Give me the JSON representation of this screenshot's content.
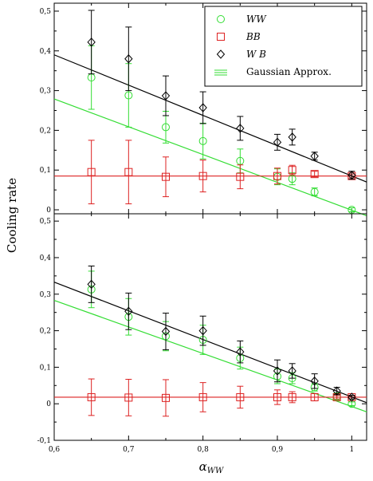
{
  "chart_data": [
    {
      "type": "scatter",
      "panel": "top",
      "xlabel": "αWW",
      "ylabel": "Cooling rate",
      "xlim": [
        0.6,
        1.02
      ],
      "ylim": [
        -0.01,
        0.52
      ],
      "x_ticks": [
        "0,6",
        "0,7",
        "0,8",
        "0,9",
        "1"
      ],
      "y_ticks": [
        "0",
        "0,1",
        "0,2",
        "0,3",
        "0,4",
        "0,5"
      ],
      "y_tick_values": [
        0,
        0.1,
        0.2,
        0.3,
        0.4,
        0.5
      ],
      "x_tick_values": [
        0.6,
        0.7,
        0.8,
        0.9,
        1.0
      ],
      "grid": false,
      "legend_position": "top-right",
      "series": [
        {
          "name": "WW",
          "color": "#33dd33",
          "marker": "circle",
          "x": [
            0.65,
            0.7,
            0.75,
            0.8,
            0.85,
            0.9,
            0.92,
            0.95,
            1.0
          ],
          "y": [
            0.333,
            0.288,
            0.208,
            0.173,
            0.123,
            0.083,
            0.078,
            0.045,
            0.0
          ],
          "err": [
            0.08,
            0.08,
            0.04,
            0.045,
            0.03,
            0.02,
            0.015,
            0.01,
            0.005
          ]
        },
        {
          "name": "BB",
          "color": "#dd2222",
          "marker": "square",
          "x": [
            0.65,
            0.7,
            0.75,
            0.8,
            0.85,
            0.9,
            0.92,
            0.95,
            1.0
          ],
          "y": [
            0.095,
            0.095,
            0.083,
            0.085,
            0.083,
            0.085,
            0.1,
            0.09,
            0.085
          ],
          "err": [
            0.08,
            0.08,
            0.05,
            0.04,
            0.03,
            0.02,
            0.012,
            0.007,
            0.005
          ]
        },
        {
          "name": "WB",
          "color": "#000000",
          "marker": "diamond",
          "x": [
            0.65,
            0.7,
            0.75,
            0.8,
            0.85,
            0.9,
            0.92,
            0.95,
            1.0
          ],
          "y": [
            0.422,
            0.38,
            0.287,
            0.257,
            0.205,
            0.17,
            0.183,
            0.135,
            0.087
          ],
          "err": [
            0.08,
            0.08,
            0.05,
            0.04,
            0.03,
            0.02,
            0.02,
            0.01,
            0.01
          ]
        }
      ],
      "fit_lines": [
        {
          "color": "#33dd33",
          "x": [
            0.6,
            1.02
          ],
          "y": [
            0.279,
            -0.015
          ]
        },
        {
          "color": "#dd2222",
          "x": [
            0.6,
            1.02
          ],
          "y": [
            0.085,
            0.085
          ]
        },
        {
          "color": "#000000",
          "x": [
            0.6,
            1.02
          ],
          "y": [
            0.39,
            0.07
          ]
        }
      ],
      "legend": [
        {
          "label": "WW",
          "color": "#33dd33",
          "marker": "circle"
        },
        {
          "label": "BB",
          "color": "#dd2222",
          "marker": "square"
        },
        {
          "label": "W B",
          "color": "#000000",
          "marker": "diamond"
        },
        {
          "label": "Gaussian Approx.",
          "color": "#33dd33",
          "marker": "lines"
        }
      ]
    },
    {
      "type": "scatter",
      "panel": "bottom",
      "xlabel": "αWW",
      "ylabel": "Cooling rate",
      "xlim": [
        0.6,
        1.02
      ],
      "ylim": [
        -0.1,
        0.52
      ],
      "x_ticks": [
        "0,6",
        "0,7",
        "0,8",
        "0,9",
        "1"
      ],
      "x_tick_values": [
        0.6,
        0.7,
        0.8,
        0.9,
        1.0
      ],
      "y_ticks": [
        "-0,1",
        "0",
        "0,1",
        "0,2",
        "0,3",
        "0,4",
        "0,5"
      ],
      "y_tick_values": [
        -0.1,
        0,
        0.1,
        0.2,
        0.3,
        0.4,
        0.5
      ],
      "grid": false,
      "series": [
        {
          "name": "WW",
          "color": "#33dd33",
          "marker": "circle",
          "x": [
            0.65,
            0.7,
            0.75,
            0.8,
            0.85,
            0.9,
            0.92,
            0.95,
            0.98,
            1.0
          ],
          "y": [
            0.313,
            0.238,
            0.185,
            0.175,
            0.125,
            0.075,
            0.07,
            0.045,
            0.02,
            0.0
          ],
          "err": [
            0.05,
            0.05,
            0.04,
            0.04,
            0.03,
            0.02,
            0.015,
            0.01,
            0.01,
            0.005
          ]
        },
        {
          "name": "BB",
          "color": "#dd2222",
          "marker": "square",
          "x": [
            0.65,
            0.7,
            0.75,
            0.8,
            0.85,
            0.9,
            0.92,
            0.95,
            0.98,
            1.0
          ],
          "y": [
            0.018,
            0.017,
            0.016,
            0.018,
            0.018,
            0.018,
            0.018,
            0.018,
            0.018,
            0.018
          ],
          "err": [
            0.05,
            0.05,
            0.05,
            0.04,
            0.03,
            0.02,
            0.015,
            0.01,
            0.005,
            0.005
          ]
        },
        {
          "name": "WB",
          "color": "#000000",
          "marker": "diamond",
          "x": [
            0.65,
            0.7,
            0.75,
            0.8,
            0.85,
            0.9,
            0.92,
            0.95,
            0.98,
            1.0
          ],
          "y": [
            0.327,
            0.253,
            0.198,
            0.2,
            0.142,
            0.09,
            0.09,
            0.062,
            0.035,
            0.018
          ],
          "err": [
            0.05,
            0.05,
            0.05,
            0.04,
            0.03,
            0.03,
            0.02,
            0.02,
            0.01,
            0.005
          ]
        }
      ],
      "fit_lines": [
        {
          "color": "#33dd33",
          "x": [
            0.6,
            1.02
          ],
          "y": [
            0.283,
            -0.022
          ]
        },
        {
          "color": "#dd2222",
          "x": [
            0.6,
            1.02
          ],
          "y": [
            0.018,
            0.018
          ]
        },
        {
          "color": "#000000",
          "x": [
            0.6,
            1.02
          ],
          "y": [
            0.333,
            0.003
          ]
        }
      ]
    }
  ]
}
